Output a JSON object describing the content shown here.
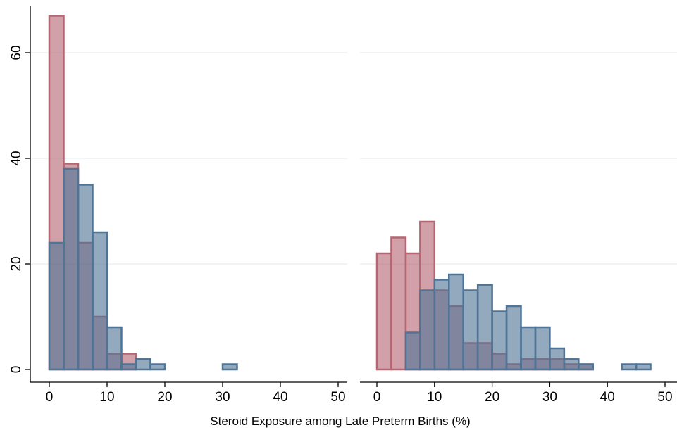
{
  "colors": {
    "series_1": "#b56672",
    "series_2": "#4f7496",
    "gridline": "#e8eef2"
  },
  "chart_data": {
    "type": "bar",
    "subtype": "overlaid-histogram",
    "xlabel": "Steroid Exposure among Late Preterm Births (%)",
    "ylabel": "",
    "grid": true,
    "legend": "none",
    "panels": [
      {
        "xlim": [
          0,
          50
        ],
        "ylim": [
          0,
          70
        ],
        "xticks": [
          0,
          10,
          20,
          30,
          40,
          50
        ],
        "yticks": [
          0,
          20,
          40,
          60
        ],
        "bin_width": 2.5,
        "series": [
          {
            "color": "#b56672",
            "bins": [
              {
                "start": 0,
                "end": 2.5,
                "value": 67
              },
              {
                "start": 2.5,
                "end": 5,
                "value": 39
              },
              {
                "start": 5,
                "end": 7.5,
                "value": 24
              },
              {
                "start": 7.5,
                "end": 10,
                "value": 10
              },
              {
                "start": 10,
                "end": 12.5,
                "value": 3
              },
              {
                "start": 12.5,
                "end": 15,
                "value": 3
              }
            ]
          },
          {
            "color": "#4f7496",
            "bins": [
              {
                "start": 0,
                "end": 2.5,
                "value": 24
              },
              {
                "start": 2.5,
                "end": 5,
                "value": 38
              },
              {
                "start": 5,
                "end": 7.5,
                "value": 35
              },
              {
                "start": 7.5,
                "end": 10,
                "value": 26
              },
              {
                "start": 10,
                "end": 12.5,
                "value": 8
              },
              {
                "start": 12.5,
                "end": 15,
                "value": 1
              },
              {
                "start": 15,
                "end": 17.5,
                "value": 2
              },
              {
                "start": 17.5,
                "end": 20,
                "value": 1
              },
              {
                "start": 30,
                "end": 32.5,
                "value": 1
              }
            ]
          }
        ]
      },
      {
        "xlim": [
          0,
          50
        ],
        "ylim": [
          0,
          70
        ],
        "xticks": [
          0,
          10,
          20,
          30,
          40,
          50
        ],
        "yticks": [
          0,
          20,
          40,
          60
        ],
        "bin_width": 2.5,
        "series": [
          {
            "color": "#b56672",
            "bins": [
              {
                "start": 0,
                "end": 2.5,
                "value": 22
              },
              {
                "start": 2.5,
                "end": 5,
                "value": 25
              },
              {
                "start": 5,
                "end": 7.5,
                "value": 22
              },
              {
                "start": 7.5,
                "end": 10,
                "value": 28
              },
              {
                "start": 10,
                "end": 12.5,
                "value": 15
              },
              {
                "start": 12.5,
                "end": 15,
                "value": 12
              },
              {
                "start": 15,
                "end": 17.5,
                "value": 5
              },
              {
                "start": 17.5,
                "end": 20,
                "value": 5
              },
              {
                "start": 20,
                "end": 22.5,
                "value": 3
              },
              {
                "start": 22.5,
                "end": 25,
                "value": 1
              },
              {
                "start": 25,
                "end": 27.5,
                "value": 2
              },
              {
                "start": 27.5,
                "end": 30,
                "value": 2
              },
              {
                "start": 30,
                "end": 32.5,
                "value": 2
              },
              {
                "start": 32.5,
                "end": 35,
                "value": 1
              },
              {
                "start": 35,
                "end": 37.5,
                "value": 1
              }
            ]
          },
          {
            "color": "#4f7496",
            "bins": [
              {
                "start": 5,
                "end": 7.5,
                "value": 7
              },
              {
                "start": 7.5,
                "end": 10,
                "value": 15
              },
              {
                "start": 10,
                "end": 12.5,
                "value": 17
              },
              {
                "start": 12.5,
                "end": 15,
                "value": 18
              },
              {
                "start": 15,
                "end": 17.5,
                "value": 15
              },
              {
                "start": 17.5,
                "end": 20,
                "value": 16
              },
              {
                "start": 20,
                "end": 22.5,
                "value": 11
              },
              {
                "start": 22.5,
                "end": 25,
                "value": 12
              },
              {
                "start": 25,
                "end": 27.5,
                "value": 8
              },
              {
                "start": 27.5,
                "end": 30,
                "value": 8
              },
              {
                "start": 30,
                "end": 32.5,
                "value": 4
              },
              {
                "start": 32.5,
                "end": 35,
                "value": 2
              },
              {
                "start": 35,
                "end": 37.5,
                "value": 1
              },
              {
                "start": 42.5,
                "end": 45,
                "value": 1
              },
              {
                "start": 45,
                "end": 47.5,
                "value": 1
              }
            ]
          }
        ]
      }
    ]
  }
}
